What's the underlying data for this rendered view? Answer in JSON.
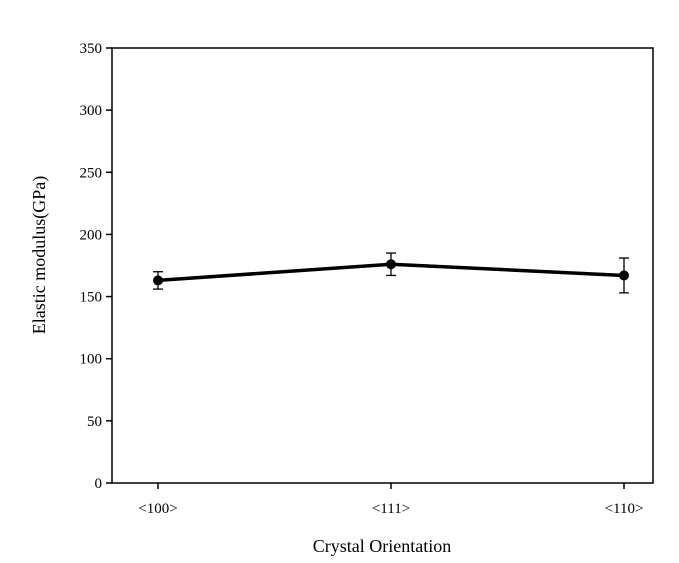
{
  "chart_data": {
    "type": "line",
    "title": "",
    "xlabel": "Crystal Orientation",
    "ylabel": "Elastic modulus(GPa)",
    "categories": [
      "<100>",
      "<111>",
      "<110>"
    ],
    "series": [
      {
        "values": [
          163,
          176,
          167
        ],
        "error": [
          7,
          9,
          14
        ],
        "color": "#000000",
        "marker": "circle"
      }
    ],
    "ylim": [
      0,
      350
    ],
    "yticks": [
      0,
      50,
      100,
      150,
      200,
      250,
      300,
      350
    ],
    "grid": false,
    "legend": "none"
  }
}
